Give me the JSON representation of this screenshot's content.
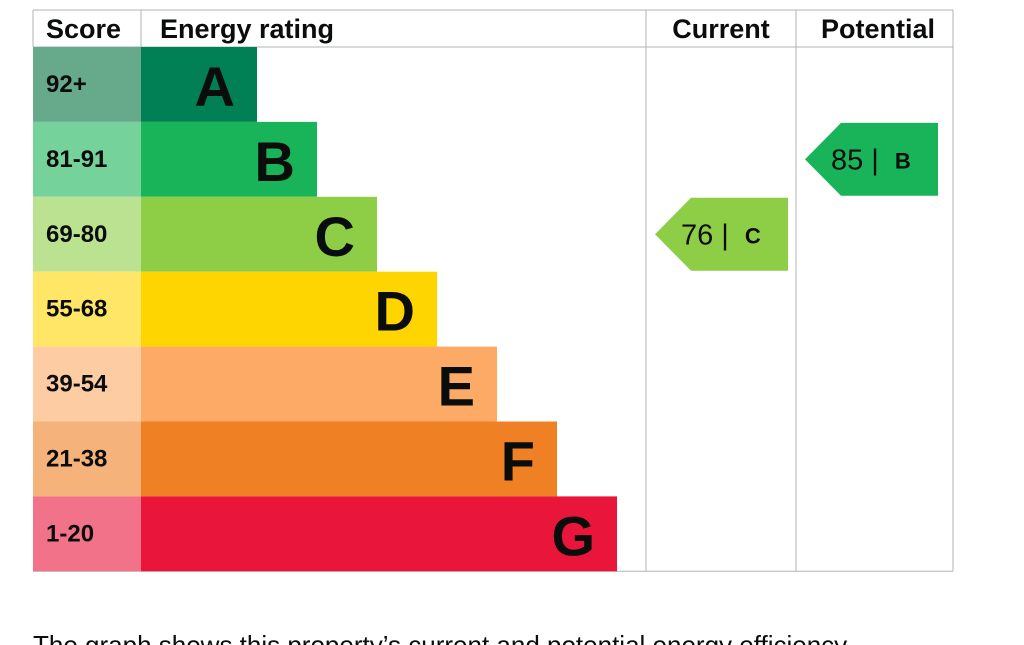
{
  "chart_data": {
    "type": "epc",
    "headers": {
      "score": "Score",
      "rating": "Energy rating",
      "current": "Current",
      "potential": "Potential"
    },
    "bands": [
      {
        "score": "92+",
        "letter": "A",
        "color": "#008054",
        "score_color": "#66a98b"
      },
      {
        "score": "81-91",
        "letter": "B",
        "color": "#19b459",
        "score_color": "#75d29b"
      },
      {
        "score": "69-80",
        "letter": "C",
        "color": "#8dce46",
        "score_color": "#bbe290"
      },
      {
        "score": "55-68",
        "letter": "D",
        "color": "#ffd500",
        "score_color": "#ffe666"
      },
      {
        "score": "39-54",
        "letter": "E",
        "color": "#fcaa65",
        "score_color": "#fdcca3"
      },
      {
        "score": "21-38",
        "letter": "F",
        "color": "#ef8023",
        "score_color": "#f5b37b"
      },
      {
        "score": "1-20",
        "letter": "G",
        "color": "#e9153b",
        "score_color": "#f27389"
      }
    ],
    "current": {
      "value": 76,
      "separator": "|",
      "letter": "C"
    },
    "potential": {
      "value": 85,
      "separator": "|",
      "letter": "B"
    },
    "caption": "The graph shows this property’s current and potential energy efficiency."
  }
}
